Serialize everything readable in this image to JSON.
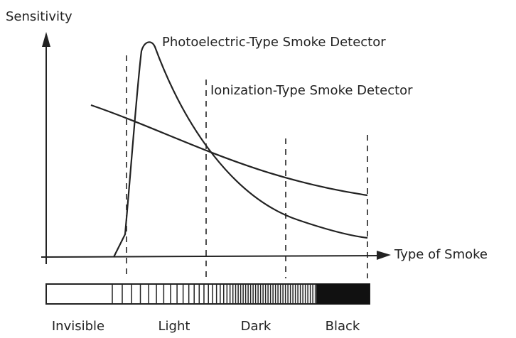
{
  "y_axis_label": "Sensitivity",
  "x_axis_label": "Type of Smoke",
  "curves": [
    {
      "label": "Photoelectric-Type Smoke Detector"
    },
    {
      "label": "Ionization-Type Smoke Detector"
    }
  ],
  "smoke_scale": [
    "Invisible",
    "Light",
    "Dark",
    "Black"
  ]
}
